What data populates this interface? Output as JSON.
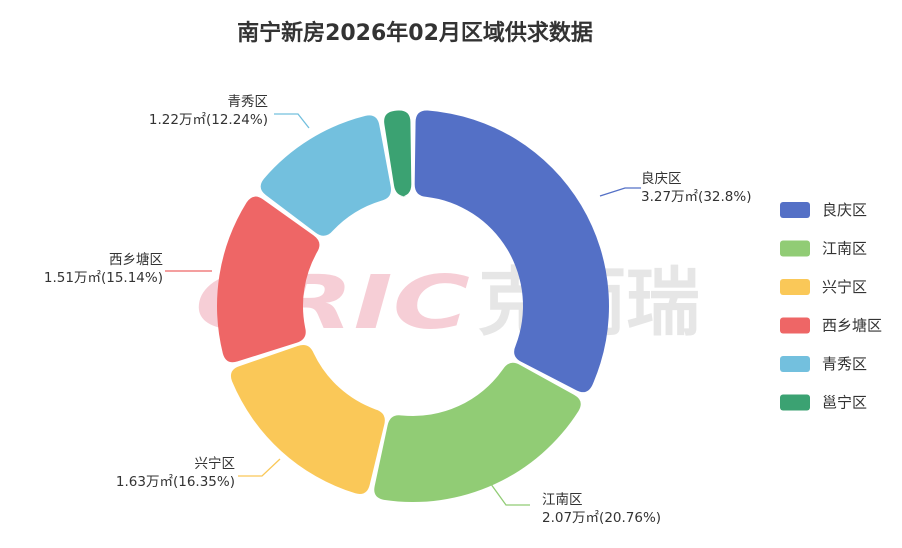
{
  "title": "南宁新房2026年02月区域供求数据",
  "watermark": {
    "en": "CRIC",
    "cn": "克而瑞"
  },
  "chart_data": {
    "type": "pie",
    "title": "南宁新房2026年02月区域供求数据",
    "variant": "donut",
    "legend_position": "right",
    "unit": "万㎡",
    "slices": [
      {
        "name": "良庆区",
        "value": 3.27,
        "percent": "32.8%",
        "label_value": "3.27万㎡(32.8%)",
        "color": "#5470c6"
      },
      {
        "name": "江南区",
        "value": 2.07,
        "percent": "20.76%",
        "label_value": "2.07万㎡(20.76%)",
        "color": "#91cc75"
      },
      {
        "name": "兴宁区",
        "value": 1.63,
        "percent": "16.35%",
        "label_value": "1.63万㎡(16.35%)",
        "color": "#fac858"
      },
      {
        "name": "西乡塘区",
        "value": 1.51,
        "percent": "15.14%",
        "label_value": "1.51万㎡(15.14%)",
        "color": "#ee6666"
      },
      {
        "name": "青秀区",
        "value": 1.22,
        "percent": "12.24%",
        "label_value": "1.22万㎡(12.24%)",
        "color": "#73c0de"
      },
      {
        "name": "邕宁区",
        "value": 0.27,
        "percent": "2.71%",
        "label_value": "",
        "color": "#3ba272"
      }
    ]
  }
}
